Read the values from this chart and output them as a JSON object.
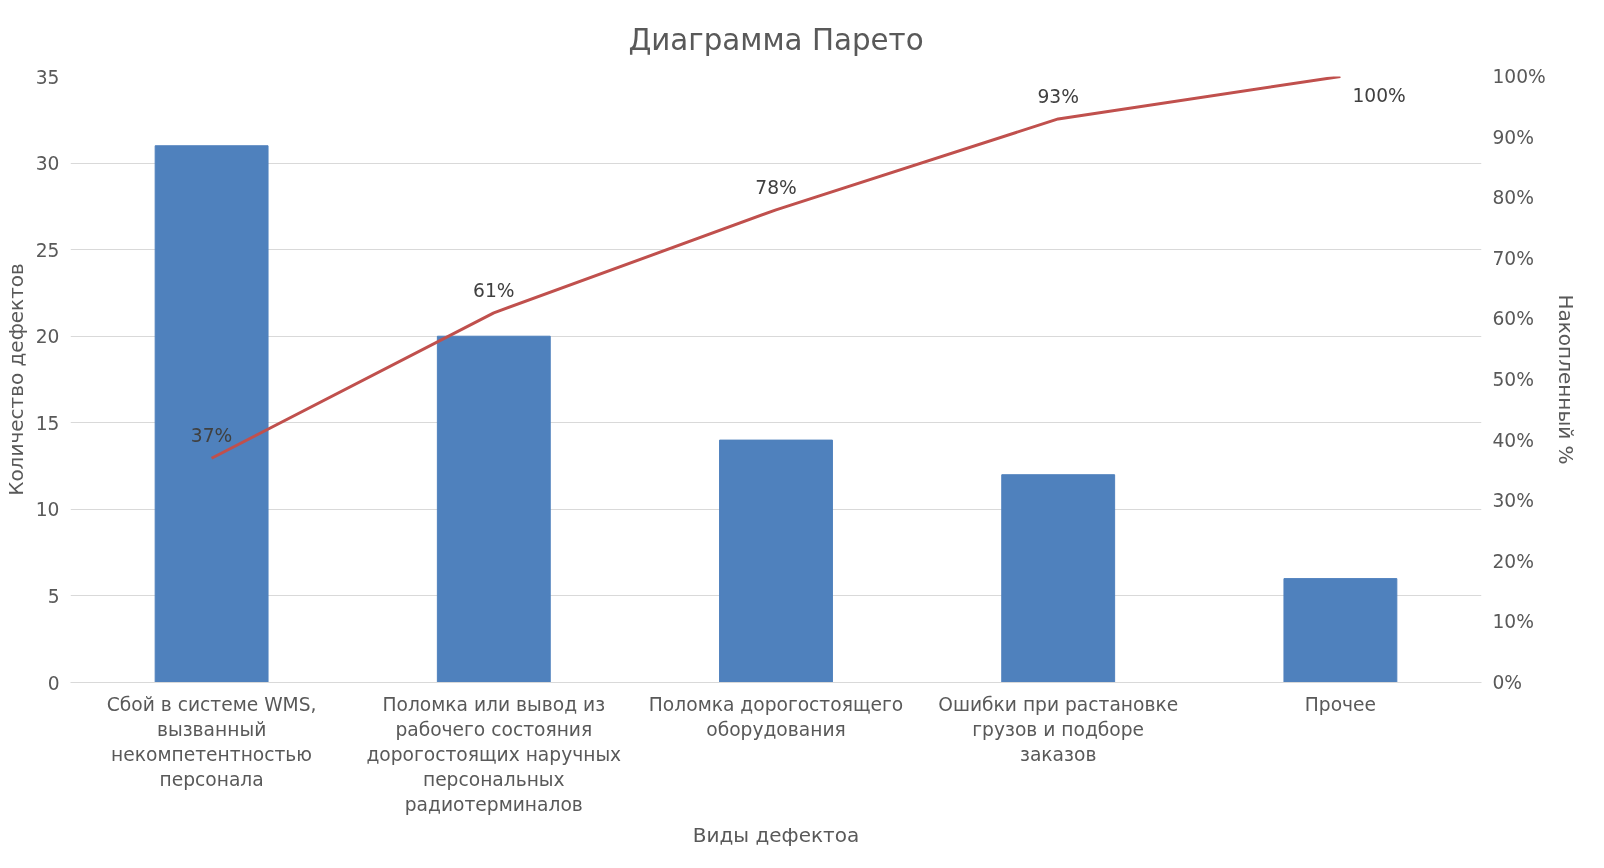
{
  "chart_data": {
    "type": "bar",
    "title": "Диаграмма Парето",
    "xlabel": "Виды дефектоа",
    "ylabel": "Количество дефектов",
    "y2label": "Накопленный %",
    "categories": [
      "Сбой в системе WMS, вызванный некомпетентностью персонала",
      "Поломка или вывод из рабочего состояния дорогостоящих наручных персональных радиотерминалов",
      "Поломка дорогостоящего оборудования",
      "Ошибки при растановке грузов и подборе заказов",
      "Прочее"
    ],
    "series": [
      {
        "color": "#4f81bd",
        "values": [
          31,
          20,
          14,
          12,
          6
        ]
      },
      {
        "type": "line",
        "axis": "y2",
        "color": "#c0504d",
        "values": [
          37,
          61,
          78,
          93,
          100
        ],
        "value_labels": [
          "37%",
          "61%",
          "78%",
          "93%",
          "100%"
        ]
      }
    ],
    "ylim": [
      0,
      35
    ],
    "yticks": [
      0,
      5,
      10,
      15,
      20,
      25,
      30,
      35
    ],
    "y2lim": [
      0,
      100
    ],
    "y2ticks": [
      {
        "value": 0,
        "label": "0%"
      },
      {
        "value": 10,
        "label": "10%"
      },
      {
        "value": 20,
        "label": "20%"
      },
      {
        "value": 30,
        "label": "30%"
      },
      {
        "value": 40,
        "label": "40%"
      },
      {
        "value": 50,
        "label": "50%"
      },
      {
        "value": 60,
        "label": "60%"
      },
      {
        "value": 70,
        "label": "70%"
      },
      {
        "value": 80,
        "label": "80%"
      },
      {
        "value": 90,
        "label": "90%"
      },
      {
        "value": 100,
        "label": "100%"
      }
    ],
    "grid": "y",
    "marker": "none",
    "line_style": "solid"
  }
}
